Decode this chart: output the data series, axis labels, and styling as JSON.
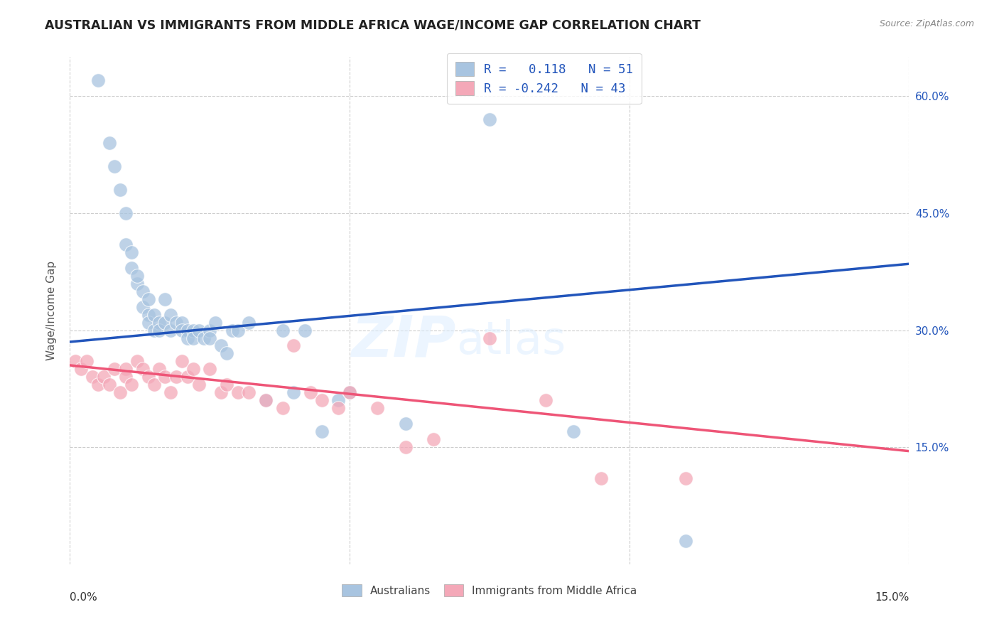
{
  "title": "AUSTRALIAN VS IMMIGRANTS FROM MIDDLE AFRICA WAGE/INCOME GAP CORRELATION CHART",
  "source": "Source: ZipAtlas.com",
  "ylabel": "Wage/Income Gap",
  "y_ticks": [
    0.15,
    0.3,
    0.45,
    0.6
  ],
  "y_tick_labels": [
    "15.0%",
    "30.0%",
    "45.0%",
    "60.0%"
  ],
  "x_range": [
    0.0,
    0.15
  ],
  "y_range": [
    0.0,
    0.65
  ],
  "legend_label1": "Australians",
  "legend_label2": "Immigrants from Middle Africa",
  "R1": 0.118,
  "N1": 51,
  "R2": -0.242,
  "N2": 43,
  "color_blue": "#A8C4E0",
  "color_pink": "#F4A8B8",
  "line_blue": "#2255BB",
  "line_pink": "#EE5577",
  "watermark_zip": "ZIP",
  "watermark_atlas": "atlas",
  "australians_x": [
    0.005,
    0.007,
    0.008,
    0.009,
    0.01,
    0.01,
    0.011,
    0.011,
    0.012,
    0.012,
    0.013,
    0.013,
    0.014,
    0.014,
    0.014,
    0.015,
    0.015,
    0.016,
    0.016,
    0.017,
    0.017,
    0.018,
    0.018,
    0.019,
    0.02,
    0.02,
    0.021,
    0.021,
    0.022,
    0.022,
    0.023,
    0.024,
    0.025,
    0.025,
    0.026,
    0.027,
    0.028,
    0.029,
    0.03,
    0.032,
    0.035,
    0.038,
    0.04,
    0.042,
    0.045,
    0.048,
    0.05,
    0.06,
    0.075,
    0.09,
    0.11
  ],
  "australians_y": [
    0.62,
    0.54,
    0.51,
    0.48,
    0.45,
    0.41,
    0.4,
    0.38,
    0.36,
    0.37,
    0.35,
    0.33,
    0.34,
    0.32,
    0.31,
    0.32,
    0.3,
    0.31,
    0.3,
    0.34,
    0.31,
    0.32,
    0.3,
    0.31,
    0.31,
    0.3,
    0.3,
    0.29,
    0.3,
    0.29,
    0.3,
    0.29,
    0.3,
    0.29,
    0.31,
    0.28,
    0.27,
    0.3,
    0.3,
    0.31,
    0.21,
    0.3,
    0.22,
    0.3,
    0.17,
    0.21,
    0.22,
    0.18,
    0.57,
    0.17,
    0.03
  ],
  "immigrants_x": [
    0.001,
    0.002,
    0.003,
    0.004,
    0.005,
    0.006,
    0.007,
    0.008,
    0.009,
    0.01,
    0.01,
    0.011,
    0.012,
    0.013,
    0.014,
    0.015,
    0.016,
    0.017,
    0.018,
    0.019,
    0.02,
    0.021,
    0.022,
    0.023,
    0.025,
    0.027,
    0.028,
    0.03,
    0.032,
    0.035,
    0.038,
    0.04,
    0.043,
    0.045,
    0.048,
    0.05,
    0.055,
    0.06,
    0.065,
    0.075,
    0.085,
    0.095,
    0.11
  ],
  "immigrants_y": [
    0.26,
    0.25,
    0.26,
    0.24,
    0.23,
    0.24,
    0.23,
    0.25,
    0.22,
    0.25,
    0.24,
    0.23,
    0.26,
    0.25,
    0.24,
    0.23,
    0.25,
    0.24,
    0.22,
    0.24,
    0.26,
    0.24,
    0.25,
    0.23,
    0.25,
    0.22,
    0.23,
    0.22,
    0.22,
    0.21,
    0.2,
    0.28,
    0.22,
    0.21,
    0.2,
    0.22,
    0.2,
    0.15,
    0.16,
    0.29,
    0.21,
    0.11,
    0.11
  ],
  "trend_blue_x0": 0.0,
  "trend_blue_y0": 0.285,
  "trend_blue_x1": 0.15,
  "trend_blue_y1": 0.385,
  "trend_pink_x0": 0.0,
  "trend_pink_y0": 0.255,
  "trend_pink_x1": 0.15,
  "trend_pink_y1": 0.145
}
